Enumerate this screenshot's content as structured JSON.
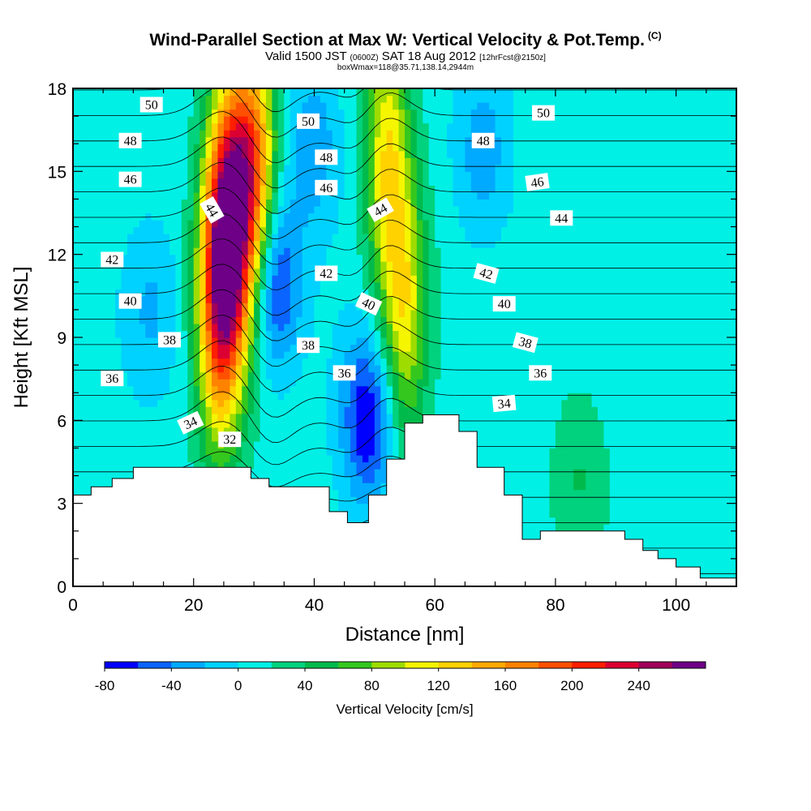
{
  "header": {
    "title": "Wind-Parallel Section at Max W: Vertical Velocity & Pot.Temp.",
    "title_badge": "(C)",
    "valid_prefix": "Valid 1500 JST",
    "valid_utc": "(0600Z)",
    "valid_date": "SAT 18 Aug 2012",
    "forecast": "[12hrFcst@2150z]",
    "note": "boxWmax=118@35.71,138.14,2944m"
  },
  "chart_data": {
    "type": "heatmap",
    "xlabel": "Distance [nm]",
    "ylabel": "Height [Kft MSL]",
    "xlim": [
      0,
      110
    ],
    "ylim": [
      0,
      18
    ],
    "x_ticks": [
      "0",
      "20",
      "40",
      "60",
      "80",
      "100"
    ],
    "y_ticks": [
      "0",
      "3",
      "6",
      "9",
      "12",
      "15",
      "18"
    ],
    "colorbar": {
      "label": "Vertical Velocity [cm/s]",
      "tick_labels": [
        "-80",
        "-40",
        "0",
        "40",
        "80",
        "120",
        "160",
        "200",
        "240"
      ],
      "levels": [
        -80,
        -60,
        -40,
        -20,
        0,
        20,
        40,
        60,
        80,
        100,
        120,
        140,
        160,
        180,
        200,
        220,
        240,
        260
      ],
      "colors": [
        "#0000ff",
        "#0a64ff",
        "#00aaff",
        "#00d2ff",
        "#00f0e6",
        "#00d27d",
        "#00bb4b",
        "#34c81e",
        "#9edc00",
        "#f5f500",
        "#ffd200",
        "#ffaa00",
        "#ff8200",
        "#ff5000",
        "#ff1e00",
        "#dc0032",
        "#a0005a",
        "#6e0087"
      ]
    },
    "terrain": [
      [
        0,
        3.3
      ],
      [
        3,
        3.3
      ],
      [
        3,
        3.6
      ],
      [
        6.5,
        3.6
      ],
      [
        6.5,
        3.9
      ],
      [
        10,
        3.9
      ],
      [
        10,
        4.3
      ],
      [
        29.5,
        4.3
      ],
      [
        29.5,
        3.9
      ],
      [
        32.5,
        3.9
      ],
      [
        32.5,
        3.6
      ],
      [
        42.5,
        3.6
      ],
      [
        42.5,
        2.7
      ],
      [
        45.5,
        2.7
      ],
      [
        45.5,
        2.3
      ],
      [
        49,
        2.3
      ],
      [
        49,
        3.3
      ],
      [
        52,
        3.3
      ],
      [
        52,
        4.6
      ],
      [
        55,
        4.6
      ],
      [
        55,
        5.9
      ],
      [
        58,
        5.9
      ],
      [
        58,
        6.2
      ],
      [
        64,
        6.2
      ],
      [
        64,
        5.6
      ],
      [
        67,
        5.6
      ],
      [
        67,
        4.3
      ],
      [
        71.5,
        4.3
      ],
      [
        71.5,
        3.3
      ],
      [
        74.5,
        3.3
      ],
      [
        74.5,
        1.7
      ],
      [
        77.5,
        1.7
      ],
      [
        77.5,
        2.0
      ],
      [
        91.5,
        2.0
      ],
      [
        91.5,
        1.7
      ],
      [
        94.5,
        1.7
      ],
      [
        94.5,
        1.3
      ],
      [
        97,
        1.3
      ],
      [
        97,
        1.0
      ],
      [
        100,
        1.0
      ],
      [
        100,
        0.7
      ],
      [
        104,
        0.7
      ],
      [
        104,
        0.3
      ],
      [
        110,
        0.3
      ],
      [
        110,
        0
      ],
      [
        0,
        0
      ]
    ],
    "fields": [
      {
        "x": 26,
        "y": 13,
        "value": 240
      },
      {
        "x": 30,
        "y": 15,
        "value": 170
      },
      {
        "x": 24,
        "y": 10,
        "value": 150
      },
      {
        "x": 55,
        "y": 10,
        "value": 110
      },
      {
        "x": 52,
        "y": 15.5,
        "value": 110
      },
      {
        "x": 33,
        "y": 11,
        "value": -85
      },
      {
        "x": 49,
        "y": 6,
        "value": -80
      },
      {
        "x": 40,
        "y": 16,
        "value": -35
      },
      {
        "x": 68,
        "y": 15.5,
        "value": -30
      },
      {
        "x": 13,
        "y": 10,
        "value": -20
      },
      {
        "x": 84,
        "y": 4.2,
        "value": 40
      }
    ],
    "contour_values": [
      32,
      33,
      34,
      35,
      36,
      37,
      38,
      39,
      40,
      41,
      42,
      43,
      44,
      45,
      46,
      47,
      48,
      49,
      50,
      51
    ],
    "contour_labels": [
      {
        "text": "50",
        "x": 13,
        "y": 17.4,
        "angle": 0
      },
      {
        "text": "50",
        "x": 39,
        "y": 16.8,
        "angle": 0
      },
      {
        "text": "50",
        "x": 78,
        "y": 17.1,
        "angle": 0
      },
      {
        "text": "48",
        "x": 9.5,
        "y": 16.1,
        "angle": 0
      },
      {
        "text": "48",
        "x": 42,
        "y": 15.5,
        "angle": 0
      },
      {
        "text": "48",
        "x": 68,
        "y": 16.1,
        "angle": 0
      },
      {
        "text": "46",
        "x": 9.5,
        "y": 14.7,
        "angle": 0
      },
      {
        "text": "46",
        "x": 42,
        "y": 14.4,
        "angle": 0
      },
      {
        "text": "46",
        "x": 77,
        "y": 14.6,
        "angle": -8
      },
      {
        "text": "44",
        "x": 23,
        "y": 13.6,
        "angle": 60
      },
      {
        "text": "44",
        "x": 51,
        "y": 13.6,
        "angle": -30
      },
      {
        "text": "44",
        "x": 81,
        "y": 13.3,
        "angle": 0
      },
      {
        "text": "42",
        "x": 6.5,
        "y": 11.8,
        "angle": 0
      },
      {
        "text": "42",
        "x": 42,
        "y": 11.3,
        "angle": 0
      },
      {
        "text": "42",
        "x": 68.5,
        "y": 11.3,
        "angle": 15
      },
      {
        "text": "40",
        "x": 9.5,
        "y": 10.3,
        "angle": 0
      },
      {
        "text": "40",
        "x": 49,
        "y": 10.2,
        "angle": 25
      },
      {
        "text": "40",
        "x": 71.5,
        "y": 10.2,
        "angle": 0
      },
      {
        "text": "38",
        "x": 16,
        "y": 8.9,
        "angle": 0
      },
      {
        "text": "38",
        "x": 39,
        "y": 8.7,
        "angle": 0
      },
      {
        "text": "38",
        "x": 75,
        "y": 8.8,
        "angle": 15
      },
      {
        "text": "36",
        "x": 6.5,
        "y": 7.5,
        "angle": 0
      },
      {
        "text": "36",
        "x": 45,
        "y": 7.7,
        "angle": 0
      },
      {
        "text": "36",
        "x": 77.5,
        "y": 7.7,
        "angle": 0
      },
      {
        "text": "34",
        "x": 19.5,
        "y": 5.9,
        "angle": -25
      },
      {
        "text": "34",
        "x": 71.5,
        "y": 6.6,
        "angle": -5
      },
      {
        "text": "32",
        "x": 26,
        "y": 5.3,
        "angle": 0
      }
    ]
  }
}
